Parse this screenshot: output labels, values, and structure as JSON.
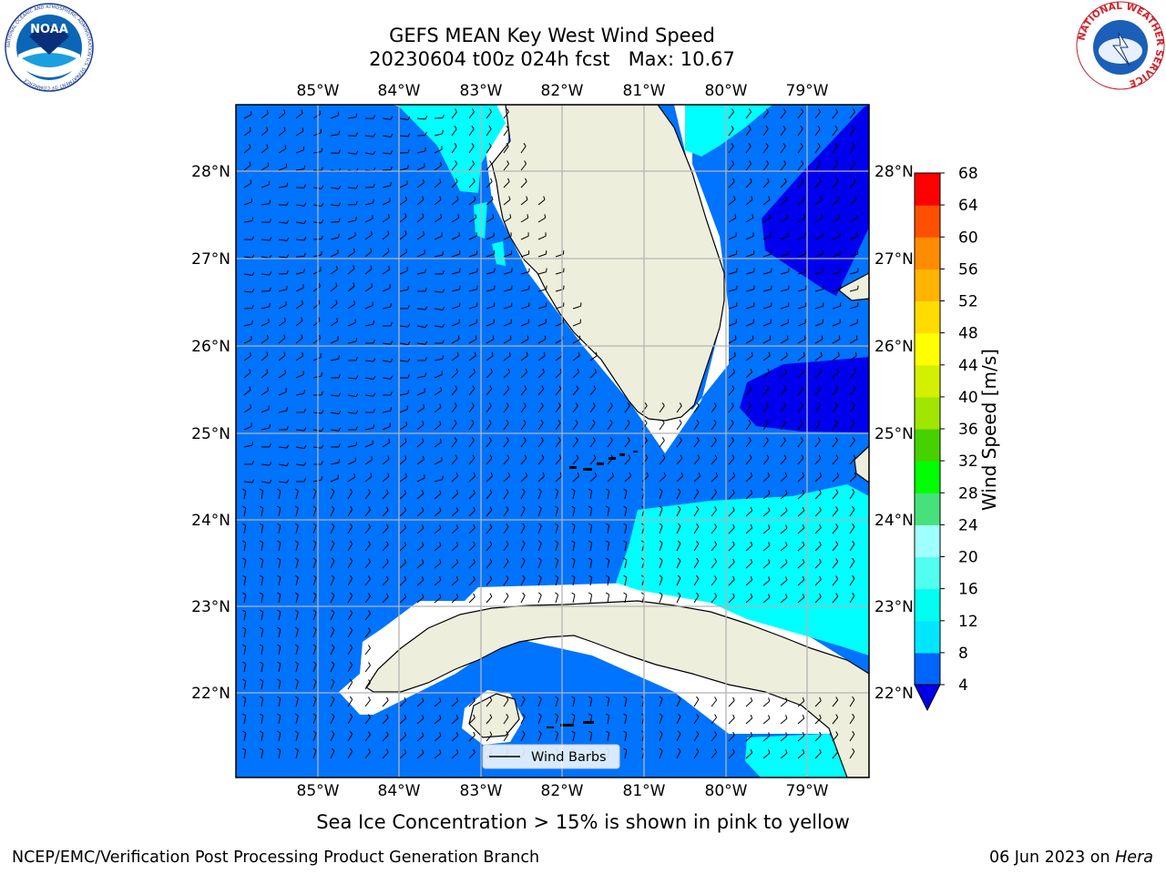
{
  "header": {
    "title_line1": "GEFS MEAN Key West Wind Speed",
    "title_line2": "20230604 t00z 024h fcst   Max: 10.67"
  },
  "logos": {
    "left": "NOAA",
    "left_ring_text": "NATIONAL OCEANIC AND ATMOSPHERIC ADMINISTRATION  U.S. DEPARTMENT OF COMMERCE",
    "right_ring_text": "NATIONAL WEATHER SERVICE"
  },
  "map": {
    "region": "Florida Straits / Key West",
    "lon_labels": [
      "85°W",
      "84°W",
      "83°W",
      "82°W",
      "81°W",
      "80°W",
      "79°W"
    ],
    "lat_labels": [
      "28°N",
      "27°N",
      "26°N",
      "25°N",
      "24°N",
      "23°N",
      "22°N"
    ],
    "legend_label": "Wind Barbs"
  },
  "colorbar": {
    "label": "Wind Speed [m/s]",
    "ticks": [
      "4",
      "8",
      "12",
      "16",
      "20",
      "24",
      "28",
      "32",
      "36",
      "40",
      "44",
      "48",
      "52",
      "56",
      "60",
      "64",
      "68"
    ],
    "colors": [
      "#0064ff",
      "#00e6ff",
      "#00fff0",
      "#50fff0",
      "#a0ffff",
      "#46e17a",
      "#00ff00",
      "#46d200",
      "#a0e600",
      "#d2f000",
      "#ffff00",
      "#ffdc00",
      "#ffb400",
      "#ff8c00",
      "#ff5000",
      "#ff0000"
    ],
    "under_color": "#0000e6"
  },
  "colors": {
    "land": "#eeeedd",
    "ocean_4_8": "#0073ff",
    "calm_lt4": "#0000ee",
    "cyan_8_12": "#00ffff",
    "grid": "#b4b4b4"
  },
  "footer": {
    "note": "Sea Ice Concentration > 15% is shown in pink to yellow",
    "left": "NCEP/EMC/Verification Post Processing Product Generation Branch",
    "right_date": "06 Jun 2023 on ",
    "right_host": "Hera"
  }
}
